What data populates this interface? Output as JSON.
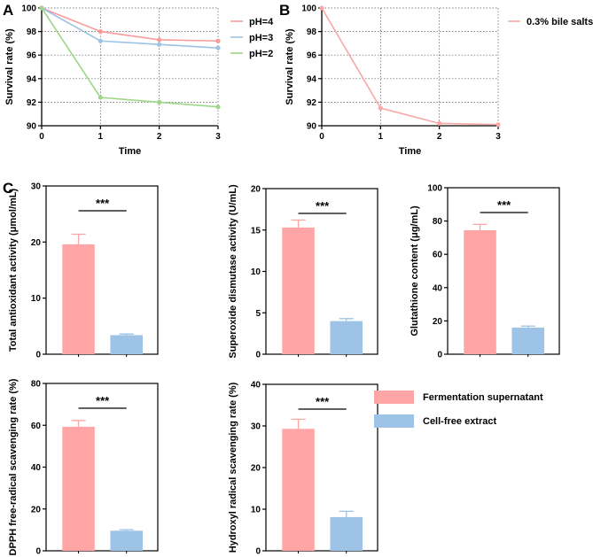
{
  "colors": {
    "pH4": "#f79b9b",
    "pH3": "#9dc3e6",
    "pH2": "#9fd68a",
    "bile": "#f9a7a7",
    "fermentation": "#ffa5a5",
    "cellfree": "#9dc3e6",
    "axis": "#000000",
    "grid": "#555555"
  },
  "legend": {
    "fermentation": "Fermentation supernatant",
    "cellfree": "Cell-free extract"
  },
  "chart_data": [
    {
      "id": "A",
      "panel_label": "A",
      "type": "line",
      "xlabel": "Time",
      "ylabel": "Survival rate (%)",
      "x": [
        0,
        1,
        2,
        3
      ],
      "ylim": [
        90,
        100
      ],
      "xticks": [
        "0",
        "1",
        "2",
        "3"
      ],
      "yticks": [
        "90",
        "92",
        "94",
        "96",
        "98",
        "100"
      ],
      "grid": true,
      "legend_position": "right",
      "series": [
        {
          "name": "pH=4",
          "color_key": "pH4",
          "values": [
            100,
            98.0,
            97.3,
            97.2
          ]
        },
        {
          "name": "pH=3",
          "color_key": "pH3",
          "values": [
            100,
            97.2,
            96.9,
            96.6
          ]
        },
        {
          "name": "pH=2",
          "color_key": "pH2",
          "values": [
            100,
            92.4,
            92.0,
            91.6
          ]
        }
      ]
    },
    {
      "id": "B",
      "panel_label": "B",
      "type": "line",
      "xlabel": "Time",
      "ylabel": "Survival rate (%)",
      "x": [
        0,
        1,
        2,
        3
      ],
      "ylim": [
        90,
        100
      ],
      "xticks": [
        "0",
        "1",
        "2",
        "3"
      ],
      "yticks": [
        "90",
        "92",
        "94",
        "96",
        "98",
        "100"
      ],
      "grid": true,
      "legend_position": "right",
      "series": [
        {
          "name": "0.3% bile salts",
          "color_key": "bile",
          "values": [
            100,
            91.5,
            90.2,
            90.1
          ]
        }
      ]
    },
    {
      "id": "C1",
      "panel_label": "C",
      "type": "bar",
      "ylabel": "Total antioxidant activity (μmol/mL)",
      "categories": [
        "Fermentation supernatant",
        "Cell-free extract"
      ],
      "values": [
        19.6,
        3.4
      ],
      "errors": [
        1.8,
        0.2
      ],
      "ylim": [
        0,
        30
      ],
      "yticks": [
        "0",
        "10",
        "20",
        "30"
      ],
      "significance": "***"
    },
    {
      "id": "C2",
      "type": "bar",
      "ylabel": "Superoxide dismutase activity (U/mL)",
      "categories": [
        "Fermentation supernatant",
        "Cell-free extract"
      ],
      "values": [
        15.3,
        4.0
      ],
      "errors": [
        0.9,
        0.3
      ],
      "ylim": [
        0,
        20
      ],
      "yticks": [
        "0",
        "5",
        "10",
        "15",
        "20"
      ],
      "significance": "***"
    },
    {
      "id": "C3",
      "type": "bar",
      "ylabel": "Glutathione content (μg/mL)",
      "categories": [
        "Fermentation supernatant",
        "Cell-free extract"
      ],
      "values": [
        74.5,
        16.0
      ],
      "errors": [
        3.5,
        0.9
      ],
      "ylim": [
        0,
        100
      ],
      "yticks": [
        "0",
        "20",
        "40",
        "60",
        "80",
        "100"
      ],
      "significance": "***"
    },
    {
      "id": "C4",
      "type": "bar",
      "ylabel": "DPPH free-radical scavenging rate (%)",
      "categories": [
        "Fermentation supernatant",
        "Cell-free extract"
      ],
      "values": [
        59.3,
        9.6
      ],
      "errors": [
        3.0,
        0.5
      ],
      "ylim": [
        0,
        80
      ],
      "yticks": [
        "0",
        "20",
        "40",
        "60",
        "80"
      ],
      "significance": "***"
    },
    {
      "id": "C5",
      "type": "bar",
      "ylabel": "Hydroxyl radical scavenging rate (%)",
      "categories": [
        "Fermentation supernatant",
        "Cell-free extract"
      ],
      "values": [
        29.3,
        8.1
      ],
      "errors": [
        2.3,
        1.4
      ],
      "ylim": [
        0,
        40
      ],
      "yticks": [
        "0",
        "10",
        "20",
        "30",
        "40"
      ],
      "significance": "***"
    }
  ]
}
